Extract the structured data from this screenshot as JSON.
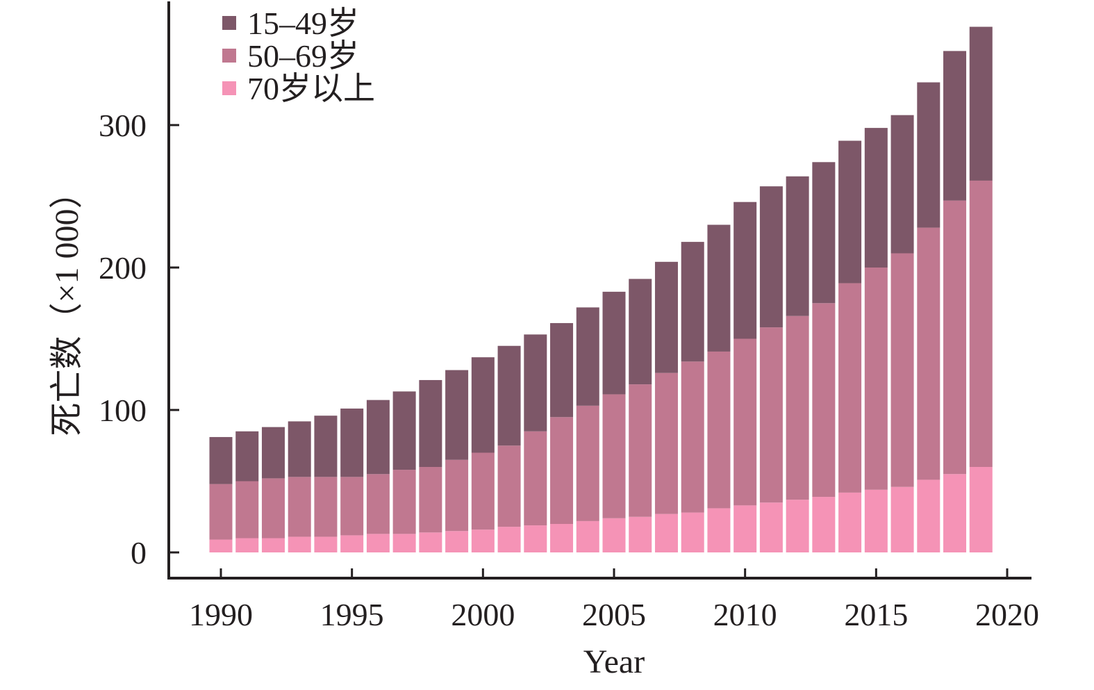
{
  "chart_data": {
    "type": "bar",
    "stacked": true,
    "xlabel": "Year",
    "ylabel": "死亡数（×1 000）",
    "ylim": [
      0,
      370
    ],
    "yticks": [
      0,
      100,
      200,
      300
    ],
    "xticks": [
      1990,
      1995,
      2000,
      2005,
      2010,
      2015,
      2020
    ],
    "xlim": [
      1989,
      2020.5
    ],
    "grid": false,
    "legend_position": "top-left",
    "x": [
      1990,
      1991,
      1992,
      1993,
      1994,
      1995,
      1996,
      1997,
      1998,
      1999,
      2000,
      2001,
      2002,
      2003,
      2004,
      2005,
      2006,
      2007,
      2008,
      2009,
      2010,
      2011,
      2012,
      2013,
      2014,
      2015,
      2016,
      2017,
      2018,
      2019
    ],
    "series": [
      {
        "name": "70岁以上",
        "color": "#f593b6",
        "values": [
          9,
          10,
          10,
          11,
          11,
          12,
          13,
          13,
          14,
          15,
          16,
          18,
          19,
          20,
          22,
          24,
          25,
          27,
          28,
          31,
          33,
          35,
          37,
          39,
          42,
          44,
          46,
          51,
          55,
          60
        ]
      },
      {
        "name": "50–69岁",
        "color": "#c07890",
        "values": [
          39,
          40,
          42,
          42,
          42,
          41,
          42,
          45,
          46,
          50,
          54,
          57,
          66,
          75,
          81,
          87,
          93,
          99,
          106,
          110,
          117,
          123,
          129,
          136,
          147,
          156,
          164,
          177,
          192,
          201
        ]
      },
      {
        "name": "15–49岁",
        "color": "#7d5768",
        "values": [
          33,
          35,
          36,
          39,
          43,
          48,
          52,
          55,
          61,
          63,
          67,
          70,
          68,
          66,
          69,
          72,
          74,
          78,
          84,
          89,
          96,
          99,
          98,
          99,
          100,
          98,
          97,
          102,
          105,
          108
        ]
      }
    ],
    "legend": [
      {
        "label": "15–49岁",
        "color": "#7d5768"
      },
      {
        "label": "50–69岁",
        "color": "#c07890"
      },
      {
        "label": "70岁以上",
        "color": "#f593b6"
      }
    ]
  }
}
